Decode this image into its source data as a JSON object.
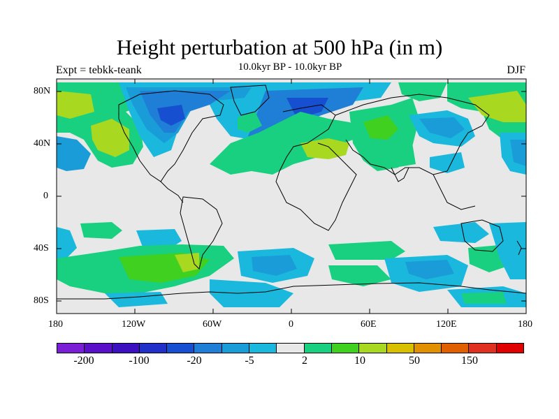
{
  "title": "Height perturbation at 500 hPa (in m)",
  "subtitle_left": "Expt = tebkk-teank",
  "subtitle_center": "10.0kyr BP - 10.0kyr BP",
  "subtitle_right": "DJF",
  "lat_ticks": [
    "80N",
    "40N",
    "0",
    "40S",
    "80S"
  ],
  "lon_ticks": [
    "180",
    "120W",
    "60W",
    "0",
    "60E",
    "120E",
    "180"
  ],
  "colorbar": {
    "colors": [
      "#7a1fd6",
      "#5a10c8",
      "#3c10c0",
      "#2030c8",
      "#1650d0",
      "#1f7ed6",
      "#1a9cd8",
      "#1ab8dc",
      "#e8e8e8",
      "#18d080",
      "#40d020",
      "#a8d820",
      "#d8c000",
      "#e09000",
      "#e06000",
      "#e03020",
      "#e00000"
    ],
    "labels": [
      "-200",
      "-100",
      "-20",
      "-5",
      "2",
      "10",
      "50",
      "150"
    ]
  },
  "map_colors": {
    "background": "#e8e8e8",
    "neg_light": "#1ab8dc",
    "neg_mid": "#1a9cd8",
    "neg_strong": "#1f7ed6",
    "neg_deep": "#1650d0",
    "pos_light": "#18d080",
    "pos_mid": "#40d020",
    "pos_strong": "#a8d820",
    "white": "#ffffff"
  }
}
